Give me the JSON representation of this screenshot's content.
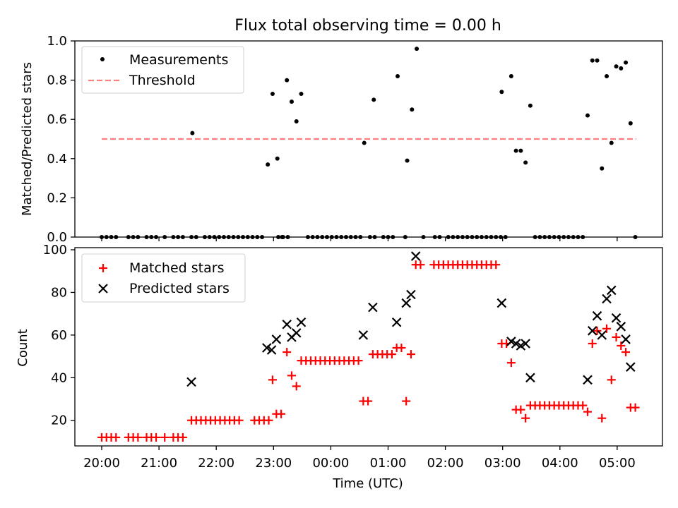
{
  "chart_data": [
    {
      "type": "scatter",
      "title": "Flux total observing time = 0.00 h",
      "ylabel": "Matched/Predicted stars",
      "xlabel": "",
      "ylim": [
        0,
        1.0
      ],
      "xlim": [
        "19:45",
        "05:55"
      ],
      "yticks": [
        0.0,
        0.2,
        0.4,
        0.6,
        0.8,
        1.0
      ],
      "ytick_labels": [
        "0.0",
        "0.2",
        "0.4",
        "0.6",
        "0.8",
        "1.0"
      ],
      "legend_position": "top-left",
      "grid": false,
      "series": [
        {
          "name": "Measurements",
          "marker": "dot",
          "color": "#000000",
          "points": [
            [
              "20:00",
              0
            ],
            [
              "20:05",
              0
            ],
            [
              "20:10",
              0
            ],
            [
              "20:15",
              0
            ],
            [
              "20:28",
              0
            ],
            [
              "20:33",
              0
            ],
            [
              "20:38",
              0
            ],
            [
              "20:47",
              0
            ],
            [
              "20:52",
              0
            ],
            [
              "20:57",
              0
            ],
            [
              "21:06",
              0
            ],
            [
              "21:15",
              0
            ],
            [
              "21:20",
              0
            ],
            [
              "21:25",
              0
            ],
            [
              "21:34",
              0
            ],
            [
              "21:39",
              0
            ],
            [
              "21:48",
              0
            ],
            [
              "21:35",
              0.53
            ],
            [
              "21:53",
              0
            ],
            [
              "21:58",
              0
            ],
            [
              "22:03",
              0
            ],
            [
              "22:08",
              0
            ],
            [
              "22:13",
              0
            ],
            [
              "22:18",
              0
            ],
            [
              "22:23",
              0
            ],
            [
              "22:28",
              0
            ],
            [
              "22:33",
              0
            ],
            [
              "22:38",
              0
            ],
            [
              "22:43",
              0
            ],
            [
              "22:48",
              0
            ],
            [
              "23:05",
              0
            ],
            [
              "23:10",
              0
            ],
            [
              "23:15",
              0
            ],
            [
              "22:54",
              0.37
            ],
            [
              "22:59",
              0.73
            ],
            [
              "23:04",
              0.4
            ],
            [
              "23:09",
              0
            ],
            [
              "23:14",
              0.8
            ],
            [
              "23:19",
              0.69
            ],
            [
              "23:24",
              0.59
            ],
            [
              "23:29",
              0.73
            ],
            [
              "23:36",
              0
            ],
            [
              "23:41",
              0
            ],
            [
              "23:46",
              0
            ],
            [
              "23:51",
              0
            ],
            [
              "23:56",
              0
            ],
            [
              "00:01",
              0
            ],
            [
              "00:06",
              0
            ],
            [
              "00:11",
              0
            ],
            [
              "00:16",
              0
            ],
            [
              "00:21",
              0
            ],
            [
              "00:26",
              0
            ],
            [
              "00:31",
              0
            ],
            [
              "00:35",
              0.48
            ],
            [
              "00:41",
              0
            ],
            [
              "00:46",
              0
            ],
            [
              "00:45",
              0.7
            ],
            [
              "00:55",
              0
            ],
            [
              "01:00",
              0
            ],
            [
              "01:05",
              0
            ],
            [
              "01:10",
              0.82
            ],
            [
              "01:18",
              0
            ],
            [
              "01:20",
              0.39
            ],
            [
              "01:25",
              0.65
            ],
            [
              "01:30",
              0.96
            ],
            [
              "01:37",
              0
            ],
            [
              "01:49",
              0
            ],
            [
              "01:54",
              0
            ],
            [
              "02:03",
              0
            ],
            [
              "02:08",
              0
            ],
            [
              "02:13",
              0
            ],
            [
              "02:18",
              0
            ],
            [
              "02:23",
              0
            ],
            [
              "02:28",
              0
            ],
            [
              "02:33",
              0
            ],
            [
              "02:38",
              0
            ],
            [
              "02:43",
              0
            ],
            [
              "02:48",
              0
            ],
            [
              "02:53",
              0
            ],
            [
              "02:58",
              0
            ],
            [
              "02:59",
              0.74
            ],
            [
              "03:03",
              0
            ],
            [
              "03:09",
              0.82
            ],
            [
              "03:14",
              0.44
            ],
            [
              "03:19",
              0.44
            ],
            [
              "03:24",
              0.38
            ],
            [
              "03:29",
              0.67
            ],
            [
              "03:34",
              0
            ],
            [
              "03:39",
              0
            ],
            [
              "03:44",
              0
            ],
            [
              "03:49",
              0
            ],
            [
              "03:54",
              0
            ],
            [
              "03:59",
              0
            ],
            [
              "04:04",
              0
            ],
            [
              "04:09",
              0
            ],
            [
              "04:14",
              0
            ],
            [
              "04:19",
              0
            ],
            [
              "04:24",
              0
            ],
            [
              "04:29",
              0.62
            ],
            [
              "04:34",
              0.9
            ],
            [
              "04:39",
              0.9
            ],
            [
              "04:44",
              0.35
            ],
            [
              "04:49",
              0.82
            ],
            [
              "04:54",
              0.48
            ],
            [
              "04:59",
              0.87
            ],
            [
              "05:04",
              0.86
            ],
            [
              "05:09",
              0.89
            ],
            [
              "05:14",
              0.58
            ],
            [
              "05:19",
              0
            ]
          ]
        },
        {
          "name": "Threshold",
          "marker": "dashed-line",
          "color": "#ff8080",
          "x": [
            "20:00",
            "05:20"
          ],
          "y": [
            0.5,
            0.5
          ]
        }
      ]
    },
    {
      "type": "scatter",
      "title": "",
      "xlabel": "Time (UTC)",
      "ylabel": "Count",
      "ylim": [
        8,
        101
      ],
      "xlim": [
        "19:45",
        "05:55"
      ],
      "yticks": [
        20,
        40,
        60,
        80,
        100
      ],
      "ytick_labels": [
        "20",
        "40",
        "60",
        "80",
        "100"
      ],
      "xticks": [
        "20:00",
        "21:00",
        "22:00",
        "23:00",
        "00:00",
        "01:00",
        "02:00",
        "03:00",
        "04:00",
        "05:00"
      ],
      "legend_position": "top-left",
      "grid": false,
      "series": [
        {
          "name": "Matched stars",
          "marker": "plus",
          "color": "#ff0000",
          "points": [
            [
              "20:00",
              12
            ],
            [
              "20:05",
              12
            ],
            [
              "20:10",
              12
            ],
            [
              "20:15",
              12
            ],
            [
              "20:28",
              12
            ],
            [
              "20:33",
              12
            ],
            [
              "20:38",
              12
            ],
            [
              "20:47",
              12
            ],
            [
              "20:52",
              12
            ],
            [
              "20:57",
              12
            ],
            [
              "21:06",
              12
            ],
            [
              "21:15",
              12
            ],
            [
              "21:20",
              12
            ],
            [
              "21:25",
              12
            ],
            [
              "21:34",
              20
            ],
            [
              "21:39",
              20
            ],
            [
              "21:44",
              20
            ],
            [
              "21:49",
              20
            ],
            [
              "21:54",
              20
            ],
            [
              "21:59",
              20
            ],
            [
              "22:04",
              20
            ],
            [
              "22:09",
              20
            ],
            [
              "22:14",
              20
            ],
            [
              "22:19",
              20
            ],
            [
              "22:24",
              20
            ],
            [
              "22:40",
              20
            ],
            [
              "22:45",
              20
            ],
            [
              "22:50",
              20
            ],
            [
              "22:55",
              20
            ],
            [
              "22:59",
              39
            ],
            [
              "23:03",
              23
            ],
            [
              "23:08",
              23
            ],
            [
              "23:14",
              52
            ],
            [
              "23:19",
              41
            ],
            [
              "23:24",
              36
            ],
            [
              "23:29",
              48
            ],
            [
              "23:34",
              48
            ],
            [
              "23:39",
              48
            ],
            [
              "23:44",
              48
            ],
            [
              "23:49",
              48
            ],
            [
              "23:54",
              48
            ],
            [
              "23:59",
              48
            ],
            [
              "00:04",
              48
            ],
            [
              "00:09",
              48
            ],
            [
              "00:14",
              48
            ],
            [
              "00:19",
              48
            ],
            [
              "00:24",
              48
            ],
            [
              "00:29",
              48
            ],
            [
              "00:34",
              29
            ],
            [
              "00:39",
              29
            ],
            [
              "00:44",
              51
            ],
            [
              "00:49",
              51
            ],
            [
              "00:54",
              51
            ],
            [
              "00:59",
              51
            ],
            [
              "01:04",
              51
            ],
            [
              "01:09",
              54
            ],
            [
              "01:14",
              54
            ],
            [
              "01:19",
              29
            ],
            [
              "01:24",
              51
            ],
            [
              "01:29",
              93
            ],
            [
              "01:34",
              93
            ],
            [
              "01:48",
              93
            ],
            [
              "01:53",
              93
            ],
            [
              "01:58",
              93
            ],
            [
              "02:03",
              93
            ],
            [
              "02:08",
              93
            ],
            [
              "02:13",
              93
            ],
            [
              "02:18",
              93
            ],
            [
              "02:23",
              93
            ],
            [
              "02:28",
              93
            ],
            [
              "02:33",
              93
            ],
            [
              "02:38",
              93
            ],
            [
              "02:43",
              93
            ],
            [
              "02:48",
              93
            ],
            [
              "02:53",
              93
            ],
            [
              "02:59",
              56
            ],
            [
              "03:04",
              56
            ],
            [
              "03:09",
              47
            ],
            [
              "03:14",
              25
            ],
            [
              "03:19",
              25
            ],
            [
              "03:24",
              21
            ],
            [
              "03:29",
              27
            ],
            [
              "03:34",
              27
            ],
            [
              "03:39",
              27
            ],
            [
              "03:44",
              27
            ],
            [
              "03:49",
              27
            ],
            [
              "03:54",
              27
            ],
            [
              "03:59",
              27
            ],
            [
              "04:04",
              27
            ],
            [
              "04:09",
              27
            ],
            [
              "04:14",
              27
            ],
            [
              "04:19",
              27
            ],
            [
              "04:24",
              27
            ],
            [
              "04:29",
              24
            ],
            [
              "04:34",
              56
            ],
            [
              "04:39",
              62
            ],
            [
              "04:44",
              21
            ],
            [
              "04:49",
              63
            ],
            [
              "04:54",
              39
            ],
            [
              "04:59",
              59
            ],
            [
              "05:04",
              55
            ],
            [
              "05:09",
              52
            ],
            [
              "05:14",
              26
            ],
            [
              "05:19",
              26
            ]
          ]
        },
        {
          "name": "Predicted stars",
          "marker": "x",
          "color": "#000000",
          "points": [
            [
              "21:34",
              38
            ],
            [
              "22:53",
              54
            ],
            [
              "22:58",
              53
            ],
            [
              "23:03",
              58
            ],
            [
              "23:14",
              65
            ],
            [
              "23:19",
              59
            ],
            [
              "23:24",
              61
            ],
            [
              "23:29",
              66
            ],
            [
              "00:34",
              60
            ],
            [
              "00:44",
              73
            ],
            [
              "01:09",
              66
            ],
            [
              "01:19",
              75
            ],
            [
              "01:24",
              79
            ],
            [
              "01:29",
              97
            ],
            [
              "02:59",
              75
            ],
            [
              "03:09",
              57
            ],
            [
              "03:14",
              56
            ],
            [
              "03:19",
              55
            ],
            [
              "03:24",
              56
            ],
            [
              "03:29",
              40
            ],
            [
              "04:29",
              39
            ],
            [
              "04:34",
              62
            ],
            [
              "04:39",
              69
            ],
            [
              "04:44",
              60
            ],
            [
              "04:49",
              77
            ],
            [
              "04:54",
              81
            ],
            [
              "04:59",
              68
            ],
            [
              "05:04",
              64
            ],
            [
              "05:09",
              58
            ],
            [
              "05:14",
              45
            ]
          ]
        }
      ]
    }
  ]
}
